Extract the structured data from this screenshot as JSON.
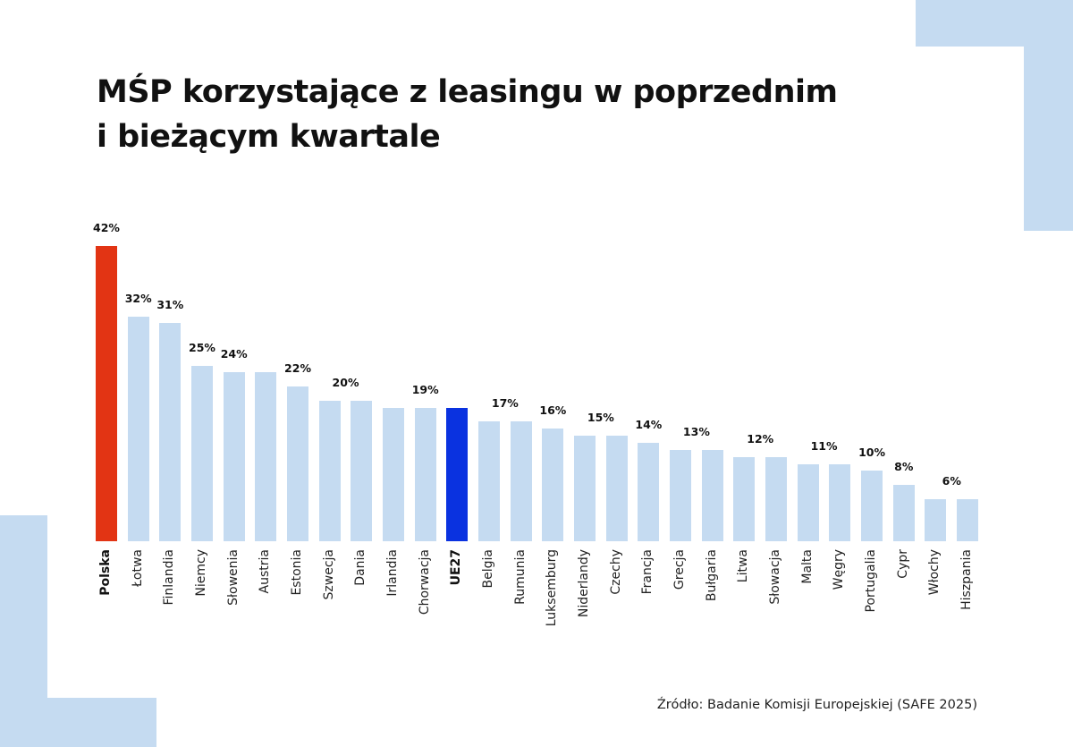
{
  "colors": {
    "default": "#c5dbf1",
    "highlight_poland": "#e23414",
    "highlight_eu": "#0a32e0",
    "decor": "#c5dbf1"
  },
  "chart_data": {
    "type": "bar",
    "title": "MŚP korzystające z leasingu w poprzednim i bieżącym kwartale",
    "title_lines": [
      "MŚP korzystające z leasingu w poprzednim",
      "i bieżącym kwartale"
    ],
    "xlabel": "",
    "ylabel": "",
    "ylim": [
      0,
      42
    ],
    "grid": false,
    "categories": [
      "Polska",
      "Łotwa",
      "Finlandia",
      "Niemcy",
      "Słowenia",
      "Austria",
      "Estonia",
      "Szwecja",
      "Dania",
      "Irlandia",
      "Chorwacja",
      "UE27",
      "Belgia",
      "Rumunia",
      "Luksemburg",
      "Niderlandy",
      "Czechy",
      "Francja",
      "Grecja",
      "Bułgaria",
      "Litwa",
      "Słowacja",
      "Malta",
      "Węgry",
      "Portugalia",
      "Cypr",
      "Włochy",
      "Hiszpania"
    ],
    "values": [
      42,
      32,
      31,
      25,
      24,
      24,
      22,
      20,
      20,
      19,
      19,
      19,
      17,
      17,
      16,
      15,
      15,
      14,
      13,
      13,
      12,
      12,
      11,
      11,
      10,
      8,
      6,
      6
    ],
    "highlight": {
      "Polska": "highlight_poland",
      "UE27": "highlight_eu"
    },
    "bold_categories": [
      "Polska",
      "UE27"
    ],
    "value_labels": [
      {
        "text": "42%",
        "bars": [
          0
        ]
      },
      {
        "text": "32%",
        "bars": [
          1
        ]
      },
      {
        "text": "31%",
        "bars": [
          2
        ]
      },
      {
        "text": "25%",
        "bars": [
          3
        ]
      },
      {
        "text": "24%",
        "bars": [
          4
        ]
      },
      {
        "text": "22%",
        "bars": [
          6
        ]
      },
      {
        "text": "20%",
        "bars": [
          7,
          8
        ]
      },
      {
        "text": "19%",
        "bars": [
          10
        ]
      },
      {
        "text": "17%",
        "bars": [
          12,
          13
        ]
      },
      {
        "text": "16%",
        "bars": [
          14
        ]
      },
      {
        "text": "15%",
        "bars": [
          15,
          16
        ]
      },
      {
        "text": "14%",
        "bars": [
          17
        ]
      },
      {
        "text": "13%",
        "bars": [
          18,
          19
        ]
      },
      {
        "text": "12%",
        "bars": [
          20,
          21
        ]
      },
      {
        "text": "11%",
        "bars": [
          22,
          23
        ]
      },
      {
        "text": "10%",
        "bars": [
          24
        ]
      },
      {
        "text": "8%",
        "bars": [
          25
        ]
      },
      {
        "text": "6%",
        "bars": [
          26,
          27
        ]
      }
    ]
  },
  "source": "Źródło: Badanie Komisji Europejskiej (SAFE 2025)"
}
